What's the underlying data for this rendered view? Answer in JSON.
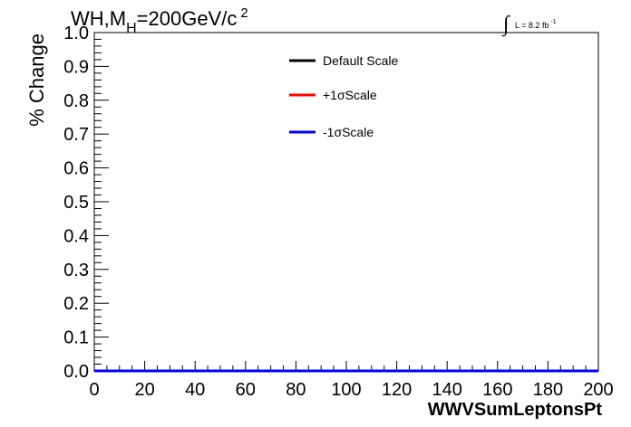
{
  "chart_data": {
    "type": "line",
    "title": {
      "prefix": "WH,M",
      "subscript": "H",
      "suffix": "=200GeV/c",
      "superscript": "2"
    },
    "lumi": {
      "symbol": "∫",
      "text": "L = 8.2 fb",
      "superscript": "-1"
    },
    "xlabel": "WWVSumLeptonsPt",
    "ylabel": "% Change",
    "xlim": [
      0,
      200
    ],
    "ylim": [
      0,
      1.0
    ],
    "x_ticks": [
      "0",
      "20",
      "40",
      "60",
      "80",
      "100",
      "120",
      "140",
      "160",
      "180",
      "200"
    ],
    "y_ticks": [
      "0.0",
      "0.1",
      "0.2",
      "0.3",
      "0.4",
      "0.5",
      "0.6",
      "0.7",
      "0.8",
      "0.9",
      "1.0"
    ],
    "legend_position": "top-right",
    "series": [
      {
        "name": "Default Scale",
        "color": "#000000",
        "x": [
          0,
          200
        ],
        "y": [
          0,
          0
        ]
      },
      {
        "name": "+1σScale",
        "color": "#ff0000",
        "x": [
          0,
          200
        ],
        "y": [
          0,
          0
        ]
      },
      {
        "name": "-1σScale",
        "color": "#0000ff",
        "x": [
          0,
          200
        ],
        "y": [
          0,
          0
        ]
      }
    ]
  }
}
